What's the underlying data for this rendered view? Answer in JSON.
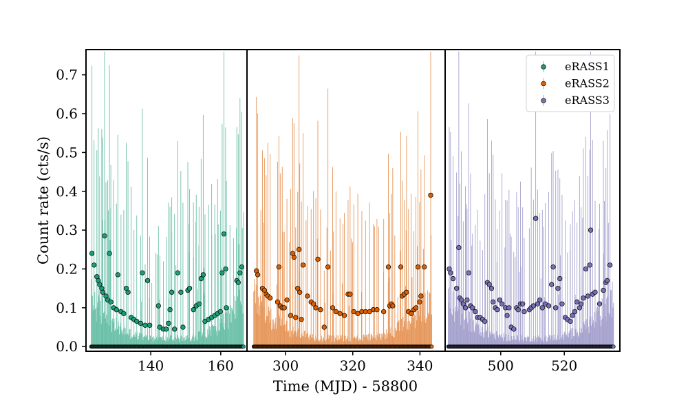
{
  "chart_data": {
    "type": "scatter",
    "ylabel": "Count rate (cts/s)",
    "xlabel": "Time (MJD) - 58800",
    "ylim": [
      -0.012,
      0.765
    ],
    "yticks": [
      0.0,
      0.1,
      0.2,
      0.3,
      0.4,
      0.5,
      0.6,
      0.7
    ],
    "ytick_labels": [
      "0.0",
      "0.1",
      "0.2",
      "0.3",
      "0.4",
      "0.5",
      "0.6",
      "0.7"
    ],
    "legend_position": "top-right",
    "panels": [
      {
        "name": "eRASS1",
        "color": "#1b9e77",
        "xlim": [
          121.5,
          167.5
        ],
        "xticks": [
          140,
          160
        ],
        "xtick_labels": [
          "140",
          "160"
        ],
        "t_range": [
          123,
          166.5
        ],
        "n_points": 260,
        "high_points": [
          {
            "x": 123.2,
            "y": 0.24
          },
          {
            "x": 123.8,
            "y": 0.21
          },
          {
            "x": 124.6,
            "y": 0.18
          },
          {
            "x": 125.0,
            "y": 0.17
          },
          {
            "x": 125.4,
            "y": 0.16
          },
          {
            "x": 126.0,
            "y": 0.15
          },
          {
            "x": 126.3,
            "y": 0.14
          },
          {
            "x": 126.8,
            "y": 0.285
          },
          {
            "x": 127.2,
            "y": 0.13
          },
          {
            "x": 127.7,
            "y": 0.12
          },
          {
            "x": 128.2,
            "y": 0.24
          },
          {
            "x": 128.6,
            "y": 0.115
          },
          {
            "x": 129.4,
            "y": 0.1
          },
          {
            "x": 130.2,
            "y": 0.095
          },
          {
            "x": 130.6,
            "y": 0.185
          },
          {
            "x": 131.5,
            "y": 0.09
          },
          {
            "x": 132.3,
            "y": 0.085
          },
          {
            "x": 133.0,
            "y": 0.15
          },
          {
            "x": 133.5,
            "y": 0.14
          },
          {
            "x": 134.4,
            "y": 0.075
          },
          {
            "x": 135.2,
            "y": 0.07
          },
          {
            "x": 136.0,
            "y": 0.065
          },
          {
            "x": 137.1,
            "y": 0.06
          },
          {
            "x": 137.6,
            "y": 0.19
          },
          {
            "x": 138.4,
            "y": 0.055
          },
          {
            "x": 139.1,
            "y": 0.17
          },
          {
            "x": 139.7,
            "y": 0.055
          },
          {
            "x": 142.2,
            "y": 0.105
          },
          {
            "x": 142.6,
            "y": 0.05
          },
          {
            "x": 143.6,
            "y": 0.045
          },
          {
            "x": 144.4,
            "y": 0.045
          },
          {
            "x": 145.1,
            "y": 0.06
          },
          {
            "x": 145.5,
            "y": 0.095
          },
          {
            "x": 146.0,
            "y": 0.14
          },
          {
            "x": 146.8,
            "y": 0.045
          },
          {
            "x": 147.7,
            "y": 0.19
          },
          {
            "x": 148.6,
            "y": 0.14
          },
          {
            "x": 149.2,
            "y": 0.05
          },
          {
            "x": 150.6,
            "y": 0.145
          },
          {
            "x": 151.1,
            "y": 0.15
          },
          {
            "x": 152.2,
            "y": 0.095
          },
          {
            "x": 153.0,
            "y": 0.105
          },
          {
            "x": 153.8,
            "y": 0.11
          },
          {
            "x": 154.4,
            "y": 0.175
          },
          {
            "x": 155.0,
            "y": 0.185
          },
          {
            "x": 155.5,
            "y": 0.065
          },
          {
            "x": 156.5,
            "y": 0.07
          },
          {
            "x": 157.4,
            "y": 0.075
          },
          {
            "x": 158.3,
            "y": 0.08
          },
          {
            "x": 159.1,
            "y": 0.085
          },
          {
            "x": 159.9,
            "y": 0.09
          },
          {
            "x": 160.4,
            "y": 0.19
          },
          {
            "x": 160.9,
            "y": 0.29
          },
          {
            "x": 161.4,
            "y": 0.2
          },
          {
            "x": 161.6,
            "y": 0.1
          },
          {
            "x": 164.6,
            "y": 0.17
          },
          {
            "x": 165.0,
            "y": 0.165
          },
          {
            "x": 165.5,
            "y": 0.19
          },
          {
            "x": 166.0,
            "y": 0.205
          }
        ]
      },
      {
        "name": "eRASS2",
        "color": "#d95f02",
        "xlim": [
          288.5,
          347.5
        ],
        "xticks": [
          300,
          320,
          340
        ],
        "xtick_labels": [
          "300",
          "320",
          "340"
        ],
        "t_range": [
          290.5,
          343.5
        ],
        "n_points": 300,
        "high_points": [
          {
            "x": 291.3,
            "y": 0.195
          },
          {
            "x": 291.7,
            "y": 0.185
          },
          {
            "x": 293.1,
            "y": 0.15
          },
          {
            "x": 293.7,
            "y": 0.145
          },
          {
            "x": 294.2,
            "y": 0.135
          },
          {
            "x": 294.7,
            "y": 0.13
          },
          {
            "x": 295.4,
            "y": 0.125
          },
          {
            "x": 297.6,
            "y": 0.115
          },
          {
            "x": 298.0,
            "y": 0.205
          },
          {
            "x": 298.4,
            "y": 0.105
          },
          {
            "x": 299.0,
            "y": 0.1
          },
          {
            "x": 299.6,
            "y": 0.1
          },
          {
            "x": 300.4,
            "y": 0.12
          },
          {
            "x": 301.5,
            "y": 0.08
          },
          {
            "x": 302.1,
            "y": 0.24
          },
          {
            "x": 302.5,
            "y": 0.23
          },
          {
            "x": 303.0,
            "y": 0.075
          },
          {
            "x": 303.6,
            "y": 0.15
          },
          {
            "x": 304.0,
            "y": 0.25
          },
          {
            "x": 304.2,
            "y": 0.14
          },
          {
            "x": 304.7,
            "y": 0.07
          },
          {
            "x": 305.2,
            "y": 0.21
          },
          {
            "x": 306.5,
            "y": 0.13
          },
          {
            "x": 307.6,
            "y": 0.115
          },
          {
            "x": 308.3,
            "y": 0.11
          },
          {
            "x": 309.0,
            "y": 0.1
          },
          {
            "x": 309.6,
            "y": 0.225
          },
          {
            "x": 310.4,
            "y": 0.095
          },
          {
            "x": 311.5,
            "y": 0.05
          },
          {
            "x": 312.6,
            "y": 0.205
          },
          {
            "x": 314.0,
            "y": 0.1
          },
          {
            "x": 315.0,
            "y": 0.09
          },
          {
            "x": 316.2,
            "y": 0.085
          },
          {
            "x": 317.5,
            "y": 0.08
          },
          {
            "x": 318.6,
            "y": 0.135
          },
          {
            "x": 319.2,
            "y": 0.135
          },
          {
            "x": 320.3,
            "y": 0.09
          },
          {
            "x": 321.5,
            "y": 0.085
          },
          {
            "x": 322.7,
            "y": 0.09
          },
          {
            "x": 323.8,
            "y": 0.09
          },
          {
            "x": 325.0,
            "y": 0.09
          },
          {
            "x": 326.1,
            "y": 0.095
          },
          {
            "x": 327.2,
            "y": 0.095
          },
          {
            "x": 329.2,
            "y": 0.09
          },
          {
            "x": 330.6,
            "y": 0.205
          },
          {
            "x": 331.0,
            "y": 0.105
          },
          {
            "x": 331.5,
            "y": 0.11
          },
          {
            "x": 331.9,
            "y": 0.105
          },
          {
            "x": 334.3,
            "y": 0.205
          },
          {
            "x": 334.7,
            "y": 0.13
          },
          {
            "x": 335.3,
            "y": 0.135
          },
          {
            "x": 336.0,
            "y": 0.14
          },
          {
            "x": 336.6,
            "y": 0.09
          },
          {
            "x": 337.4,
            "y": 0.085
          },
          {
            "x": 338.2,
            "y": 0.095
          },
          {
            "x": 338.8,
            "y": 0.1
          },
          {
            "x": 339.4,
            "y": 0.205
          },
          {
            "x": 339.9,
            "y": 0.115
          },
          {
            "x": 340.3,
            "y": 0.13
          },
          {
            "x": 341.3,
            "y": 0.205
          },
          {
            "x": 343.2,
            "y": 0.39
          }
        ]
      },
      {
        "name": "eRASS3",
        "color": "#7570b3",
        "xlim": [
          482.5,
          537.5
        ],
        "xticks": [
          500,
          520
        ],
        "xtick_labels": [
          "500",
          "520"
        ],
        "t_range": [
          483.5,
          535.5
        ],
        "n_points": 290,
        "high_points": [
          {
            "x": 483.8,
            "y": 0.2
          },
          {
            "x": 484.2,
            "y": 0.19
          },
          {
            "x": 485.0,
            "y": 0.175
          },
          {
            "x": 486.1,
            "y": 0.15
          },
          {
            "x": 486.8,
            "y": 0.255
          },
          {
            "x": 487.1,
            "y": 0.125
          },
          {
            "x": 487.6,
            "y": 0.12
          },
          {
            "x": 488.2,
            "y": 0.11
          },
          {
            "x": 488.9,
            "y": 0.1
          },
          {
            "x": 489.4,
            "y": 0.12
          },
          {
            "x": 489.9,
            "y": 0.19
          },
          {
            "x": 490.5,
            "y": 0.105
          },
          {
            "x": 491.1,
            "y": 0.1
          },
          {
            "x": 492.0,
            "y": 0.09
          },
          {
            "x": 492.7,
            "y": 0.075
          },
          {
            "x": 493.5,
            "y": 0.075
          },
          {
            "x": 494.3,
            "y": 0.07
          },
          {
            "x": 495.0,
            "y": 0.065
          },
          {
            "x": 495.8,
            "y": 0.165
          },
          {
            "x": 496.4,
            "y": 0.16
          },
          {
            "x": 497.1,
            "y": 0.15
          },
          {
            "x": 497.6,
            "y": 0.115
          },
          {
            "x": 498.3,
            "y": 0.1
          },
          {
            "x": 498.9,
            "y": 0.095
          },
          {
            "x": 499.7,
            "y": 0.12
          },
          {
            "x": 500.4,
            "y": 0.11
          },
          {
            "x": 501.5,
            "y": 0.1
          },
          {
            "x": 502.0,
            "y": 0.08
          },
          {
            "x": 502.6,
            "y": 0.1
          },
          {
            "x": 503.3,
            "y": 0.05
          },
          {
            "x": 504.1,
            "y": 0.045
          },
          {
            "x": 505.0,
            "y": 0.1
          },
          {
            "x": 505.5,
            "y": 0.095
          },
          {
            "x": 506.2,
            "y": 0.11
          },
          {
            "x": 506.9,
            "y": 0.11
          },
          {
            "x": 507.4,
            "y": 0.09
          },
          {
            "x": 509.0,
            "y": 0.095
          },
          {
            "x": 509.6,
            "y": 0.1
          },
          {
            "x": 510.3,
            "y": 0.105
          },
          {
            "x": 511.0,
            "y": 0.33
          },
          {
            "x": 511.6,
            "y": 0.11
          },
          {
            "x": 512.3,
            "y": 0.12
          },
          {
            "x": 513.1,
            "y": 0.1
          },
          {
            "x": 514.0,
            "y": 0.11
          },
          {
            "x": 515.1,
            "y": 0.105
          },
          {
            "x": 516.0,
            "y": 0.16
          },
          {
            "x": 516.5,
            "y": 0.205
          },
          {
            "x": 517.3,
            "y": 0.1
          },
          {
            "x": 518.0,
            "y": 0.15
          },
          {
            "x": 518.6,
            "y": 0.175
          },
          {
            "x": 519.3,
            "y": 0.11
          },
          {
            "x": 520.3,
            "y": 0.075
          },
          {
            "x": 521.0,
            "y": 0.07
          },
          {
            "x": 521.9,
            "y": 0.065
          },
          {
            "x": 522.6,
            "y": 0.08
          },
          {
            "x": 523.3,
            "y": 0.09
          },
          {
            "x": 524.0,
            "y": 0.115
          },
          {
            "x": 524.8,
            "y": 0.1
          },
          {
            "x": 525.3,
            "y": 0.11
          },
          {
            "x": 526.0,
            "y": 0.125
          },
          {
            "x": 526.8,
            "y": 0.2
          },
          {
            "x": 527.4,
            "y": 0.13
          },
          {
            "x": 528.0,
            "y": 0.21
          },
          {
            "x": 528.3,
            "y": 0.3
          },
          {
            "x": 528.9,
            "y": 0.135
          },
          {
            "x": 529.7,
            "y": 0.14
          },
          {
            "x": 531.1,
            "y": 0.11
          },
          {
            "x": 532.3,
            "y": 0.145
          },
          {
            "x": 533.1,
            "y": 0.165
          },
          {
            "x": 533.5,
            "y": 0.17
          },
          {
            "x": 534.4,
            "y": 0.21
          }
        ]
      }
    ]
  }
}
